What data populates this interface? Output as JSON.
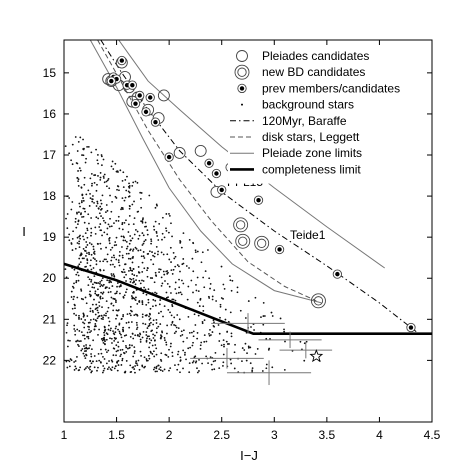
{
  "chart_data": {
    "type": "scatter",
    "xlabel": "I−J",
    "ylabel": "I",
    "xlim": [
      1.0,
      4.5
    ],
    "ylim": [
      23.5,
      14.2
    ],
    "y_inverted": true,
    "grid": false,
    "legend_placement": "top-right",
    "xticks": [
      {
        "v": 1.0,
        "label": "1"
      },
      {
        "v": 1.5,
        "label": "1.5"
      },
      {
        "v": 2.0,
        "label": "2"
      },
      {
        "v": 2.5,
        "label": "2.5"
      },
      {
        "v": 3.0,
        "label": "3"
      },
      {
        "v": 3.5,
        "label": "3.5"
      },
      {
        "v": 4.0,
        "label": "4"
      },
      {
        "v": 4.5,
        "label": "4.5"
      }
    ],
    "yticks": [
      {
        "v": 15,
        "label": "15"
      },
      {
        "v": 16,
        "label": "16"
      },
      {
        "v": 17,
        "label": "17"
      },
      {
        "v": 18,
        "label": "18"
      },
      {
        "v": 19,
        "label": "19"
      },
      {
        "v": 20,
        "label": "20"
      },
      {
        "v": 21,
        "label": "21"
      },
      {
        "v": 22,
        "label": "22"
      }
    ],
    "legend": [
      {
        "label": "Pleiades candidates",
        "marker": "open-circle"
      },
      {
        "label": "new BD candidates",
        "marker": "double-circle"
      },
      {
        "label": "prev members/candidates",
        "marker": "dot-in-circle"
      },
      {
        "label": "background stars",
        "marker": "small-dot"
      },
      {
        "label": "120Myr, Baraffe",
        "marker": "dash-dot-line"
      },
      {
        "label": "disk stars, Leggett",
        "marker": "dashed-line"
      },
      {
        "label": "Pleiade zone limits",
        "marker": "thin-gray-line"
      },
      {
        "label": "completeness limit",
        "marker": "thick-line"
      }
    ],
    "annotations": [
      {
        "text": "PPL15",
        "x": 2.55,
        "y": 17.75
      },
      {
        "text": "Teide1",
        "x": 3.15,
        "y": 19.05
      }
    ],
    "background_stars": {
      "description_count": 1500,
      "seed": 7
    },
    "series": [
      {
        "name": "Pleiades candidates",
        "marker": "open-circle",
        "points": [
          {
            "x": 1.45,
            "y": 15.2
          },
          {
            "x": 1.52,
            "y": 15.3
          },
          {
            "x": 1.58,
            "y": 15.1
          },
          {
            "x": 1.62,
            "y": 15.35
          },
          {
            "x": 1.7,
            "y": 15.6
          },
          {
            "x": 1.65,
            "y": 15.7
          },
          {
            "x": 1.8,
            "y": 15.9
          },
          {
            "x": 1.9,
            "y": 16.1
          },
          {
            "x": 1.95,
            "y": 15.55
          },
          {
            "x": 2.1,
            "y": 16.95
          },
          {
            "x": 2.3,
            "y": 16.9
          },
          {
            "x": 2.45,
            "y": 17.9
          },
          {
            "x": 1.55,
            "y": 14.75
          },
          {
            "x": 1.42,
            "y": 15.15
          }
        ]
      },
      {
        "name": "new BD candidates",
        "marker": "double-circle",
        "points": [
          {
            "x": 2.68,
            "y": 18.7
          },
          {
            "x": 2.7,
            "y": 19.1
          },
          {
            "x": 2.88,
            "y": 19.15
          },
          {
            "x": 3.42,
            "y": 20.55
          }
        ]
      },
      {
        "name": "prev members/candidates",
        "marker": "dot-in-circle",
        "points": [
          {
            "x": 1.55,
            "y": 14.7
          },
          {
            "x": 1.47,
            "y": 15.1
          },
          {
            "x": 1.5,
            "y": 15.15
          },
          {
            "x": 1.6,
            "y": 15.3
          },
          {
            "x": 1.65,
            "y": 15.3
          },
          {
            "x": 1.72,
            "y": 15.55
          },
          {
            "x": 1.68,
            "y": 15.75
          },
          {
            "x": 1.82,
            "y": 15.6
          },
          {
            "x": 1.78,
            "y": 15.95
          },
          {
            "x": 1.87,
            "y": 16.2
          },
          {
            "x": 2.0,
            "y": 17.05
          },
          {
            "x": 2.38,
            "y": 17.2
          },
          {
            "x": 2.45,
            "y": 17.45
          },
          {
            "x": 2.5,
            "y": 17.85
          },
          {
            "x": 2.58,
            "y": 17.3
          },
          {
            "x": 3.05,
            "y": 19.3
          },
          {
            "x": 3.6,
            "y": 19.9
          },
          {
            "x": 4.3,
            "y": 21.2
          },
          {
            "x": 2.85,
            "y": 18.1
          },
          {
            "x": 1.45,
            "y": 15.2
          }
        ]
      }
    ],
    "lines": [
      {
        "name": "120Myr, Baraffe",
        "style": "dash-dot",
        "points": [
          [
            1.35,
            14.2
          ],
          [
            1.55,
            15.0
          ],
          [
            1.8,
            15.9
          ],
          [
            2.1,
            16.9
          ],
          [
            2.5,
            17.9
          ],
          [
            3.0,
            18.85
          ],
          [
            3.5,
            19.7
          ],
          [
            4.0,
            20.6
          ],
          [
            4.35,
            21.3
          ]
        ]
      },
      {
        "name": "disk stars, Leggett",
        "style": "dashed",
        "points": [
          [
            1.32,
            14.2
          ],
          [
            1.55,
            15.25
          ],
          [
            1.8,
            16.4
          ],
          [
            2.1,
            17.6
          ],
          [
            2.4,
            18.6
          ],
          [
            2.75,
            19.6
          ],
          [
            3.1,
            20.2
          ],
          [
            3.4,
            20.55
          ]
        ]
      },
      {
        "name": "Pleiade zone limits",
        "style": "thin-gray",
        "points": [
          [
            1.25,
            14.2
          ],
          [
            1.5,
            15.35
          ],
          [
            1.75,
            16.6
          ],
          [
            2.0,
            17.8
          ],
          [
            2.3,
            18.85
          ],
          [
            2.6,
            19.65
          ],
          [
            3.0,
            20.3
          ],
          [
            3.45,
            20.6
          ]
        ]
      },
      {
        "name": "Pleiade zone limits (upper)",
        "style": "thin-gray",
        "points": [
          [
            1.52,
            14.2
          ],
          [
            1.8,
            15.2
          ],
          [
            2.1,
            15.9
          ],
          [
            2.5,
            16.8
          ],
          [
            3.0,
            17.8
          ],
          [
            3.5,
            18.75
          ],
          [
            4.05,
            19.75
          ]
        ]
      },
      {
        "name": "completeness limit",
        "style": "thick",
        "points": [
          [
            1.0,
            19.65
          ],
          [
            1.5,
            20.05
          ],
          [
            2.0,
            20.55
          ],
          [
            2.5,
            21.05
          ],
          [
            2.8,
            21.35
          ],
          [
            4.5,
            21.35
          ]
        ]
      }
    ],
    "error_bars": [
      {
        "x": 2.75,
        "y": 21.1,
        "dx": 0.35,
        "dy": 0.25
      },
      {
        "x": 3.15,
        "y": 21.5,
        "dx": 0.3,
        "dy": 0.2
      },
      {
        "x": 2.55,
        "y": 21.95,
        "dx": 0.35,
        "dy": 0.25
      },
      {
        "x": 2.95,
        "y": 22.3,
        "dx": 0.4,
        "dy": 0.3
      },
      {
        "x": 3.3,
        "y": 21.75,
        "dx": 0.25,
        "dy": 0.2
      }
    ],
    "star_marker": {
      "x": 3.4,
      "y": 21.9
    }
  }
}
